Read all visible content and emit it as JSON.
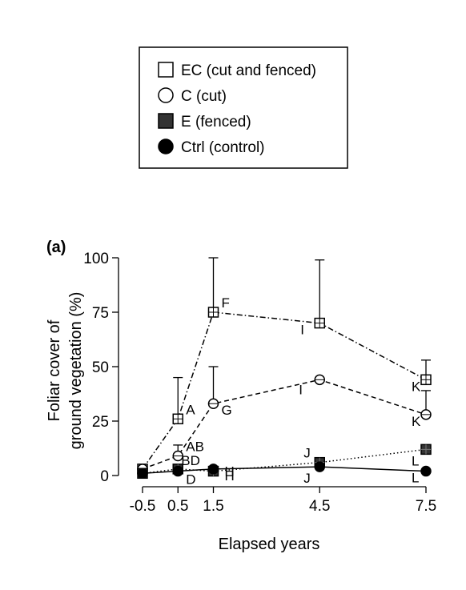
{
  "chart_data": {
    "type": "line",
    "panel_label": "(a)",
    "xlabel": "Elapsed years",
    "ylabel_lines": [
      "Foliar cover of",
      "ground vegetation (%)"
    ],
    "x": [
      -0.5,
      0.5,
      1.5,
      4.5,
      7.5
    ],
    "x_tick_labels": [
      "-0.5",
      "0.5",
      "1.5",
      "4.5",
      "7.5"
    ],
    "xlim": [
      -0.5,
      7.5
    ],
    "ylim": [
      0,
      100
    ],
    "y_ticks": [
      0,
      25,
      50,
      75,
      100
    ],
    "y_tick_labels": [
      "0",
      "25",
      "50",
      "75",
      "100"
    ],
    "legend_position": "top",
    "series": [
      {
        "name": "EC (cut and fenced)",
        "marker": "open-square",
        "line_style": "dash-dot",
        "values": [
          3,
          26,
          75,
          70,
          44
        ],
        "error_upper": [
          0,
          45,
          100,
          99,
          53
        ],
        "labels": [
          "",
          "A",
          "F",
          "I",
          "K"
        ]
      },
      {
        "name": "C (cut)",
        "marker": "open-circle",
        "line_style": "dashed",
        "values": [
          3,
          9,
          33,
          44,
          28
        ],
        "error_upper": [
          0,
          14,
          50,
          0,
          39
        ],
        "labels": [
          "",
          "AB",
          "G",
          "I",
          "K"
        ]
      },
      {
        "name": "E (fenced)",
        "marker": "filled-square",
        "line_style": "dotted",
        "values": [
          1,
          3,
          2,
          6,
          12
        ],
        "error_upper": [
          0,
          0,
          0,
          0,
          0
        ],
        "labels": [
          "",
          "BD",
          "H",
          "J",
          "L"
        ]
      },
      {
        "name": "Ctrl (control)",
        "marker": "filled-circle",
        "line_style": "solid",
        "values": [
          1,
          2,
          3,
          4,
          2
        ],
        "error_upper": [
          0,
          0,
          0,
          0,
          0
        ],
        "labels": [
          "",
          "D",
          "H",
          "J",
          "L"
        ]
      }
    ]
  }
}
